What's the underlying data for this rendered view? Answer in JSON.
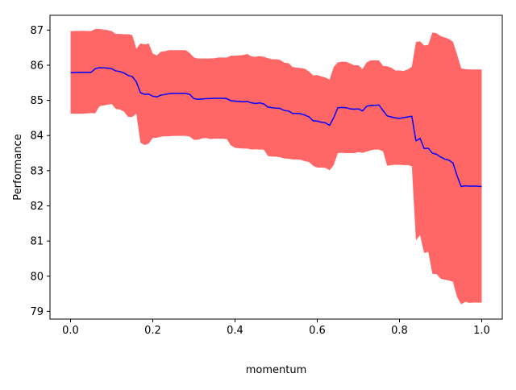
{
  "chart_data": {
    "type": "line",
    "title": "",
    "xlabel": "momentum",
    "ylabel": "Performance",
    "xlim": [
      -0.05,
      1.05
    ],
    "ylim": [
      78.78,
      87.42
    ],
    "x_ticks": [
      0.0,
      0.2,
      0.4,
      0.6,
      0.8,
      1.0
    ],
    "x_tick_labels": [
      "0.0",
      "0.2",
      "0.4",
      "0.6",
      "0.8",
      "1.0"
    ],
    "y_ticks": [
      79,
      80,
      81,
      82,
      83,
      84,
      85,
      86,
      87
    ],
    "y_tick_labels": [
      "79",
      "80",
      "81",
      "82",
      "83",
      "84",
      "85",
      "86",
      "87"
    ],
    "grid": false,
    "legend": "none",
    "colors": {
      "mean_line": "#0000ff",
      "band": "#ff6666",
      "axes": "#000000"
    },
    "series": [
      {
        "style": "line",
        "x": [
          0.0,
          0.03,
          0.05,
          0.06,
          0.07,
          0.09,
          0.1,
          0.11,
          0.12,
          0.13,
          0.14,
          0.15,
          0.16,
          0.17,
          0.18,
          0.19,
          0.2,
          0.21,
          0.22,
          0.23,
          0.24,
          0.25,
          0.26,
          0.27,
          0.28,
          0.29,
          0.3,
          0.31,
          0.32,
          0.33,
          0.34,
          0.35,
          0.36,
          0.37,
          0.38,
          0.39,
          0.4,
          0.41,
          0.42,
          0.43,
          0.44,
          0.45,
          0.46,
          0.47,
          0.48,
          0.49,
          0.5,
          0.51,
          0.52,
          0.53,
          0.54,
          0.55,
          0.56,
          0.57,
          0.58,
          0.59,
          0.6,
          0.61,
          0.62,
          0.63,
          0.64,
          0.65,
          0.66,
          0.67,
          0.68,
          0.69,
          0.7,
          0.71,
          0.72,
          0.73,
          0.74,
          0.75,
          0.76,
          0.77,
          0.78,
          0.79,
          0.8,
          0.81,
          0.82,
          0.83,
          0.84,
          0.85,
          0.86,
          0.87,
          0.88,
          0.89,
          0.9,
          0.91,
          0.92,
          0.93,
          0.94,
          0.95,
          0.96,
          0.97,
          0.98,
          0.99,
          1.0
        ],
        "y": [
          85.79,
          85.8,
          85.8,
          85.9,
          85.93,
          85.92,
          85.9,
          85.84,
          85.82,
          85.78,
          85.71,
          85.68,
          85.53,
          85.22,
          85.17,
          85.18,
          85.12,
          85.1,
          85.15,
          85.17,
          85.19,
          85.2,
          85.2,
          85.2,
          85.2,
          85.17,
          85.05,
          85.03,
          85.04,
          85.05,
          85.05,
          85.06,
          85.06,
          85.06,
          85.05,
          84.99,
          84.98,
          84.97,
          84.96,
          84.97,
          84.93,
          84.91,
          84.93,
          84.9,
          84.81,
          84.79,
          84.78,
          84.77,
          84.71,
          84.7,
          84.63,
          84.63,
          84.62,
          84.58,
          84.53,
          84.42,
          84.41,
          84.38,
          84.36,
          84.29,
          84.51,
          84.79,
          84.8,
          84.79,
          84.76,
          84.75,
          84.76,
          84.7,
          84.83,
          84.86,
          84.86,
          84.87,
          84.71,
          84.56,
          84.53,
          84.5,
          84.49,
          84.51,
          84.53,
          84.55,
          83.85,
          83.92,
          83.63,
          83.64,
          83.5,
          83.47,
          83.39,
          83.33,
          83.3,
          83.22,
          82.86,
          82.55,
          82.57,
          82.56,
          82.56,
          82.56,
          82.55
        ]
      },
      {
        "style": "band",
        "x": [
          0.0,
          0.03,
          0.05,
          0.06,
          0.07,
          0.09,
          0.1,
          0.11,
          0.12,
          0.13,
          0.14,
          0.15,
          0.16,
          0.17,
          0.18,
          0.19,
          0.2,
          0.21,
          0.22,
          0.23,
          0.24,
          0.25,
          0.26,
          0.27,
          0.28,
          0.29,
          0.3,
          0.31,
          0.32,
          0.33,
          0.34,
          0.35,
          0.36,
          0.37,
          0.38,
          0.39,
          0.4,
          0.41,
          0.42,
          0.43,
          0.44,
          0.45,
          0.46,
          0.47,
          0.48,
          0.49,
          0.5,
          0.51,
          0.52,
          0.53,
          0.54,
          0.55,
          0.56,
          0.57,
          0.58,
          0.59,
          0.6,
          0.61,
          0.62,
          0.63,
          0.64,
          0.65,
          0.66,
          0.67,
          0.68,
          0.69,
          0.7,
          0.71,
          0.72,
          0.73,
          0.74,
          0.75,
          0.76,
          0.77,
          0.78,
          0.79,
          0.8,
          0.81,
          0.82,
          0.83,
          0.84,
          0.85,
          0.86,
          0.87,
          0.88,
          0.89,
          0.9,
          0.91,
          0.92,
          0.93,
          0.94,
          0.95,
          0.96,
          0.97,
          0.98,
          0.99,
          1.0
        ],
        "y_lower": [
          84.62,
          84.62,
          84.64,
          84.63,
          84.83,
          84.88,
          84.9,
          84.76,
          84.74,
          84.68,
          84.53,
          84.53,
          84.62,
          83.8,
          83.73,
          83.77,
          83.93,
          83.94,
          83.97,
          83.98,
          83.98,
          83.99,
          83.99,
          83.99,
          83.99,
          83.97,
          83.88,
          83.88,
          83.92,
          83.93,
          83.9,
          83.91,
          83.91,
          83.91,
          83.9,
          83.72,
          83.65,
          83.64,
          83.63,
          83.63,
          83.6,
          83.61,
          83.6,
          83.6,
          83.42,
          83.4,
          83.4,
          83.38,
          83.35,
          83.34,
          83.32,
          83.32,
          83.31,
          83.27,
          83.25,
          83.14,
          83.09,
          83.09,
          83.08,
          83.01,
          83.16,
          83.5,
          83.51,
          83.5,
          83.5,
          83.5,
          83.53,
          83.51,
          83.54,
          83.58,
          83.6,
          83.6,
          83.55,
          83.14,
          83.16,
          83.17,
          83.17,
          83.16,
          83.16,
          83.13,
          81.02,
          81.17,
          80.66,
          80.69,
          80.07,
          80.06,
          79.93,
          79.9,
          79.88,
          79.84,
          79.41,
          79.2,
          79.27,
          79.24,
          79.25,
          79.25,
          79.25
        ],
        "y_upper": [
          86.97,
          86.98,
          86.97,
          87.03,
          87.03,
          87.0,
          86.97,
          86.89,
          86.89,
          86.88,
          86.88,
          86.86,
          86.47,
          86.62,
          86.59,
          86.62,
          86.33,
          86.28,
          86.39,
          86.4,
          86.43,
          86.43,
          86.43,
          86.43,
          86.43,
          86.35,
          86.22,
          86.19,
          86.19,
          86.19,
          86.19,
          86.2,
          86.22,
          86.22,
          86.22,
          86.27,
          86.27,
          86.28,
          86.29,
          86.32,
          86.25,
          86.24,
          86.26,
          86.24,
          86.2,
          86.17,
          86.17,
          86.15,
          86.07,
          86.06,
          85.95,
          85.93,
          85.92,
          85.9,
          85.82,
          85.71,
          85.72,
          85.68,
          85.65,
          85.59,
          85.95,
          86.08,
          86.1,
          86.1,
          86.05,
          86.0,
          86.0,
          85.89,
          86.08,
          86.14,
          86.14,
          86.14,
          85.98,
          85.97,
          85.93,
          85.85,
          85.85,
          85.84,
          85.88,
          85.96,
          86.66,
          86.68,
          86.56,
          86.58,
          86.93,
          86.91,
          86.83,
          86.79,
          86.75,
          86.67,
          86.31,
          85.91,
          85.89,
          85.88,
          85.88,
          85.88,
          85.88
        ]
      }
    ]
  }
}
